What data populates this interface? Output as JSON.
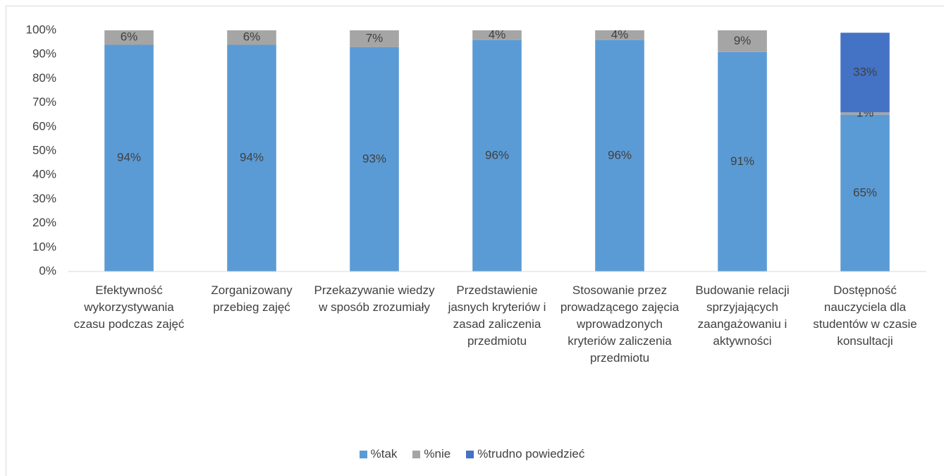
{
  "chart_data": {
    "type": "stacked_bar",
    "categories": [
      "Efektywność wykorzystywania czasu podczas zajęć",
      "Zorganizowany przebieg zajęć",
      "Przekazywanie wiedzy w sposób zrozumiały",
      "Przedstawienie jasnych kryteriów i zasad zaliczenia przedmiotu",
      "Stosowanie przez prowadzącego zajęcia wprowadzonych kryteriów zaliczenia przedmiotu",
      "Budowanie relacji sprzyjających zaangażowaniu i aktywności",
      "Dostępność nauczyciela dla studentów w czasie konsultacji"
    ],
    "series": [
      {
        "name": "%tak",
        "color": "#5b9bd5",
        "values": [
          94,
          94,
          93,
          96,
          96,
          91,
          65
        ],
        "value_labels": [
          "94%",
          "94%",
          "93%",
          "96%",
          "96%",
          "91%",
          "65%"
        ]
      },
      {
        "name": "%nie",
        "color": "#a5a5a5",
        "values": [
          6,
          6,
          7,
          4,
          4,
          9,
          1
        ],
        "value_labels": [
          "6%",
          "6%",
          "7%",
          "4%",
          "4%",
          "9%",
          "1%"
        ]
      },
      {
        "name": "%trudno powiedzieć",
        "color": "#4472c4",
        "values": [
          null,
          null,
          null,
          null,
          null,
          null,
          33
        ],
        "value_labels": [
          null,
          null,
          null,
          null,
          null,
          null,
          "33%"
        ]
      }
    ],
    "ylim": [
      0,
      100
    ],
    "yticks": [
      {
        "value": 0,
        "label": "0%"
      },
      {
        "value": 10,
        "label": "10%"
      },
      {
        "value": 20,
        "label": "20%"
      },
      {
        "value": 30,
        "label": "30%"
      },
      {
        "value": 40,
        "label": "40%"
      },
      {
        "value": 50,
        "label": "50%"
      },
      {
        "value": 60,
        "label": "60%"
      },
      {
        "value": 70,
        "label": "70%"
      },
      {
        "value": 80,
        "label": "80%"
      },
      {
        "value": 90,
        "label": "90%"
      },
      {
        "value": 100,
        "label": "100%"
      }
    ],
    "grid": false,
    "legend": "bottom"
  }
}
